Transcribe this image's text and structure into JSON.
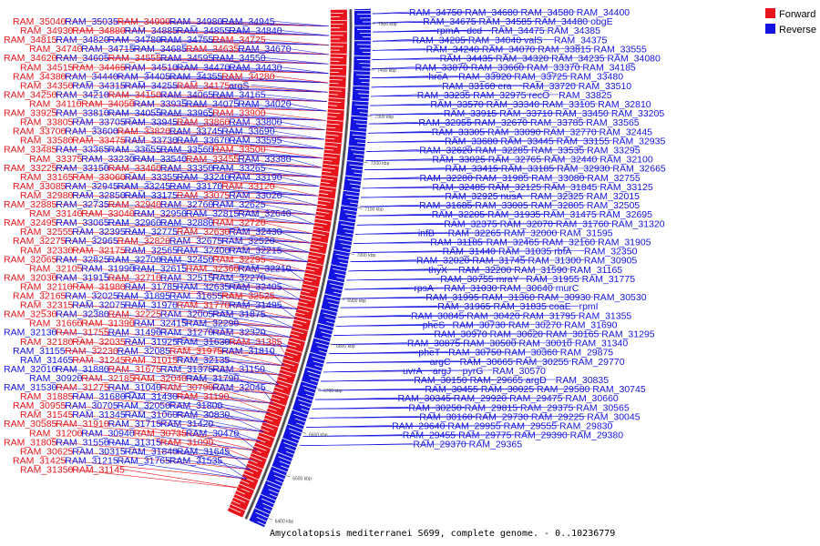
{
  "caption": "Amycolatopsis mediterranei S699, complete genome. - 0..10236779",
  "legend": [
    {
      "label": "Forward",
      "color": "#e8141b"
    },
    {
      "label": "Reverse",
      "color": "#1414e0"
    }
  ],
  "colors": {
    "forward": "#e8141b",
    "reverse": "#1414e0",
    "genome_line": "#6e6e6e"
  },
  "ticks": [
    "7500 kbp",
    "7400 kbp",
    "7300 kbp",
    "7200 kbp",
    "7100 kbp",
    "7000 kbp",
    "6900 kbp",
    "6800 kbp",
    "6700 kbp",
    "6600 kbp",
    "6500 kbp",
    "6400 kbp"
  ],
  "forward_labels": [
    "RAM_35040",
    "RAM_35035",
    "RAM_34990",
    "RAM_34980",
    "RAM_34945",
    "RAM_34930",
    "RAM_34880",
    "RAM_34885",
    "RAM_34855",
    "RAM_34840",
    "RAM_34815",
    "RAM_34820",
    "RAM_34780",
    "RAM_34755",
    "RAM_34725",
    "RAM_34740",
    "RAM_34715",
    "RAM_34685",
    "RAM_34635",
    "RAM_34670",
    "RAM_34620",
    "RAM_34605",
    "RAM_34555",
    "RAM_34595",
    "RAM_34550",
    "RAM_34515",
    "RAM_34465",
    "RAM_34510",
    "RAM_34470",
    "RAM_34430",
    "RAM_34380",
    "RAM_34440",
    "RAM_34405",
    "RAM_34355",
    "RAM_34280",
    "RAM_34350",
    "RAM_34315",
    "RAM_34255",
    "RAM_34175",
    "argS",
    "RAM_34250",
    "RAM_34210",
    "RAM_34150",
    "RAM_34065",
    "RAM_34165",
    "RAM_34110",
    "RAM_34050",
    "RAM_33935",
    "RAM_34075",
    "RAM_34020",
    "RAM_33925",
    "RAM_33810",
    "RAM_34055",
    "RAM_33965",
    "RAM_33900",
    "RAM_33805",
    "RAM_33705",
    "RAM_33945",
    "RAM_33860",
    "RAM_33800",
    "RAM_33700",
    "RAM_33600",
    "RAM_33820",
    "RAM_33745",
    "RAM_33690",
    "RAM_33580",
    "RAM_33475",
    "RAM_33730",
    "RAM_33670",
    "RAM_33595",
    "RAM_33485",
    "RAM_33365",
    "RAM_33655",
    "RAM_33560",
    "RAM_33500",
    "RAM_33375",
    "RAM_33230",
    "RAM_33540",
    "RAM_33455",
    "RAM_33380",
    "RAM_33225",
    "RAM_33150",
    "RAM_33460",
    "RAM_33350",
    "RAM_33265",
    "RAM_33165",
    "RAM_33060",
    "RAM_33355",
    "RAM_33240",
    "RAM_33190",
    "RAM_33085",
    "RAM_32945",
    "RAM_33245",
    "RAM_33170",
    "RAM_33120",
    "RAM_32980",
    "RAM_32850",
    "RAM_33175",
    "RAM_33075",
    "RAM_33020",
    "RAM_32885",
    "RAM_32735",
    "RAM_32940",
    "RAM_32760",
    "RAM_32625",
    "RAM_33140",
    "RAM_33040",
    "RAM_32950",
    "RAM_32815",
    "RAM_32640",
    "RAM_32495",
    "RAM_33065",
    "RAM_32960",
    "RAM_32880",
    "RAM_32720",
    "RAM_32555",
    "RAM_32395",
    "RAM_32775",
    "RAM_32630",
    "RAM_32430",
    "RAM_32275",
    "RAM_32965",
    "RAM_32820",
    "RAM_32675",
    "RAM_32520",
    "RAM_32330",
    "RAM_32175",
    "RAM_32565",
    "RAM_32400",
    "RAM_32215",
    "RAM_32065",
    "RAM_32825",
    "RAM_32700",
    "RAM_32450",
    "RAM_32295",
    "RAM_32105",
    "RAM_31990",
    "RAM_32615",
    "RAM_32360",
    "RAM_32210",
    "RAM_32030",
    "RAM_31915",
    "RAM_32710",
    "RAM_32515",
    "RAM_32270",
    "RAM_32110",
    "RAM_31980",
    "RAM_31785",
    "RAM_32635",
    "RAM_32405",
    "RAM_32165",
    "RAM_32025",
    "RAM_31895",
    "RAM_31655",
    "RAM_32525",
    "RAM_32315",
    "RAM_32075",
    "RAM_31970",
    "RAM_31770",
    "RAM_31495",
    "RAM_32530",
    "RAM_32380",
    "RAM_32225",
    "RAM_32005",
    "RAM_31875",
    "RAM_31660",
    "RAM_31390",
    "RAM_32415",
    "RAM_32290",
    "RAM_32130",
    "RAM_31755",
    "RAM_31490",
    "RAM_31270",
    "RAM_32320",
    "RAM_32180",
    "RAM_32035",
    "RAM_31925",
    "RAM_31630",
    "RAM_31385",
    "RAM_31155",
    "RAM_32230",
    "RAM_32085",
    "RAM_31975",
    "RAM_31810",
    "RAM_31465",
    "RAM_31245",
    "RAM_31015",
    "RAM_32135",
    "RAM_32010",
    "RAM_31880",
    "RAM_31675",
    "RAM_31375",
    "RAM_31150",
    "RAM_30920",
    "RAM_32185",
    "RAM_32040",
    "RAM_31790",
    "RAM_31530",
    "RAM_31275",
    "RAM_31040",
    "RAM_30790",
    "RAM_32045",
    "RAM_31885",
    "RAM_31680",
    "RAM_31430",
    "RAM_31190",
    "RAM_30955",
    "RAM_30705",
    "RAM_32050",
    "RAM_31800",
    "RAM_31545",
    "RAM_31345",
    "RAM_31060",
    "RAM_30830",
    "RAM_30585",
    "RAM_31910",
    "RAM_31715",
    "RAM_31420",
    "RAM_31200",
    "RAM_30940",
    "RAM_30735",
    "RAM_30470",
    "RAM_31805",
    "RAM_31550",
    "RAM_31315",
    "RAM_31090",
    "RAM_30625",
    "RAM_30315",
    "RAM_31840",
    "RAM_31645",
    "RAM_31425",
    "RAM_31215",
    "RAM_31765",
    "RAM_31535",
    "RAM_31350",
    "RAM_31145"
  ],
  "reverse_labels": [
    "RAM_34750",
    "RAM_34680",
    "RAM_34580",
    "RAM_34400",
    "RAM_34675",
    "RAM_34585",
    "RAM_34480",
    "obgE",
    "rpmA",
    "dcd",
    "RAM_34475",
    "RAM_34385",
    "RAM_34205",
    "RAM_34040",
    "valS",
    "RAM_34375",
    "RAM_34240",
    "RAM_34070",
    "RAM_33815",
    "RAM_33555",
    "RAM_34435",
    "RAM_34320",
    "RAM_34235",
    "RAM_34080",
    "RAM_33870",
    "RAM_33660",
    "RAM_33370",
    "RAM_34185",
    "hrcA",
    "RAM_33920",
    "RAM_33725",
    "RAM_33480",
    "RAM_33160",
    "era",
    "RAM_33720",
    "RAM_33510",
    "RAM_33235",
    "RAM_32975",
    "recO",
    "RAM_33825",
    "RAM_33570",
    "RAM_33340",
    "RAM_33105",
    "RAM_32810",
    "RAM_33915",
    "RAM_33710",
    "RAM_33450",
    "RAM_33205",
    "RAM_32955",
    "RAM_32670",
    "RAM_33785",
    "RAM_33565",
    "RAM_33305",
    "RAM_33090",
    "RAM_32770",
    "RAM_32445",
    "RAM_33680",
    "RAM_33445",
    "RAM_33155",
    "RAM_32935",
    "RAM_32620",
    "RAM_32285",
    "RAM_33535",
    "RAM_33295",
    "RAM_33025",
    "RAM_32765",
    "RAM_32440",
    "RAM_32100",
    "RAM_33415",
    "RAM_33185",
    "RAM_32930",
    "RAM_32665",
    "RAM_32280",
    "RAM_31985",
    "RAM_33080",
    "RAM_32755",
    "RAM_32485",
    "RAM_32125",
    "RAM_31845",
    "RAM_33125",
    "RAM_32925",
    "nusA",
    "RAM_32325",
    "RAM_32015",
    "RAM_31685",
    "RAM_33005",
    "RAM_32805",
    "RAM_32505",
    "RAM_32205",
    "RAM_31935",
    "RAM_31475",
    "RAM_32695",
    "RAM_32375",
    "RAM_32070",
    "RAM_31760",
    "RAM_31320",
    "infB",
    "RAM_32265",
    "RAM_32000",
    "RAM_31595",
    "RAM_31185",
    "RAM_32465",
    "RAM_32160",
    "RAM_31905",
    "RAM_31440",
    "RAM_31035",
    "rbfA",
    "RAM_32350",
    "RAM_32020",
    "RAM_31745",
    "RAM_31300",
    "RAM_30905",
    "thyX",
    "RAM_32200",
    "RAM_31590",
    "RAM_31165",
    "RAM_30755",
    "mraY",
    "RAM_31955",
    "RAM_31775",
    "rpsA",
    "RAM_31030",
    "RAM_30640",
    "murC",
    "RAM_31995",
    "RAM_31360",
    "RAM_30930",
    "RAM_30530",
    "RAM_31965",
    "RAM_31835",
    "coaE",
    "rpmI",
    "RAM_30845",
    "RAM_30420",
    "RAM_31795",
    "RAM_31355",
    "pheS",
    "RAM_30730",
    "RAM_30270",
    "RAM_31690",
    "RAM_30970",
    "RAM_30620",
    "RAM_30165",
    "RAM_31295",
    "RAM_30875",
    "RAM_30500",
    "RAM_30010",
    "RAM_31340",
    "pheT",
    "RAM_30750",
    "RAM_30360",
    "RAM_29875",
    "argC",
    "RAM_30665",
    "RAM_30255",
    "RAM_29770",
    "uvrA",
    "argJ",
    "pyrG",
    "RAM_30570",
    "RAM_30150",
    "RAM_29665",
    "argD",
    "RAM_30835",
    "RAM_30455",
    "RAM_30025",
    "RAM_29580",
    "RAM_30745",
    "RAM_30345",
    "RAM_29920",
    "RAM_29475",
    "RAM_30660",
    "RAM_30250",
    "RAM_29815",
    "RAM_29375",
    "RAM_30565",
    "RAM_30160",
    "RAM_29730",
    "RAM_29225",
    "RAM_30045",
    "RAM_29640",
    "RAM_29955",
    "RAM_29555",
    "RAM_29830",
    "RAM_29455",
    "RAM_29775",
    "RAM_29390",
    "RAM_29380",
    "RAM_29370",
    "RAM_29365"
  ]
}
